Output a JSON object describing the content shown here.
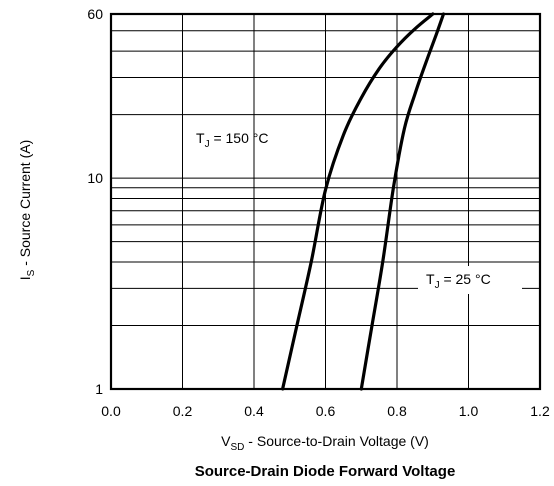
{
  "chart_data": {
    "type": "line",
    "title": "Source-Drain Diode Forward Voltage",
    "xlabel": {
      "prefix": "V",
      "sub": "SD",
      "suffix": " - Source-to-Drain Voltage (V)"
    },
    "ylabel": {
      "prefix": "I",
      "sub": "S",
      "suffix": " - Source Current (A)"
    },
    "xlim": [
      0.0,
      1.2
    ],
    "ylim": [
      1,
      60
    ],
    "yscale": "log",
    "grid": true,
    "xticks": [
      0.0,
      0.2,
      0.4,
      0.6,
      0.8,
      1.0,
      1.2
    ],
    "xtick_labels": [
      "0.0",
      "0.2",
      "0.4",
      "0.6",
      "0.8",
      "1.0",
      "1.2"
    ],
    "yticks": [
      1,
      10,
      60
    ],
    "ytick_labels": [
      "1",
      "10",
      "60"
    ],
    "series": [
      {
        "label_prefix": "T",
        "label_sub": "J",
        "label_suffix": " = 150 °C",
        "x": [
          0.48,
          0.52,
          0.56,
          0.6,
          0.65,
          0.7,
          0.75,
          0.8,
          0.85,
          0.9
        ],
        "y": [
          1,
          2,
          4,
          8.8,
          16,
          24,
          33,
          42,
          51,
          60
        ]
      },
      {
        "label_prefix": "T",
        "label_sub": "J",
        "label_suffix": " = 25 °C",
        "x": [
          0.7,
          0.73,
          0.76,
          0.79,
          0.82,
          0.85,
          0.88,
          0.91,
          0.93
        ],
        "y": [
          1,
          2,
          4,
          9,
          17,
          25,
          35,
          48,
          60
        ]
      }
    ]
  }
}
